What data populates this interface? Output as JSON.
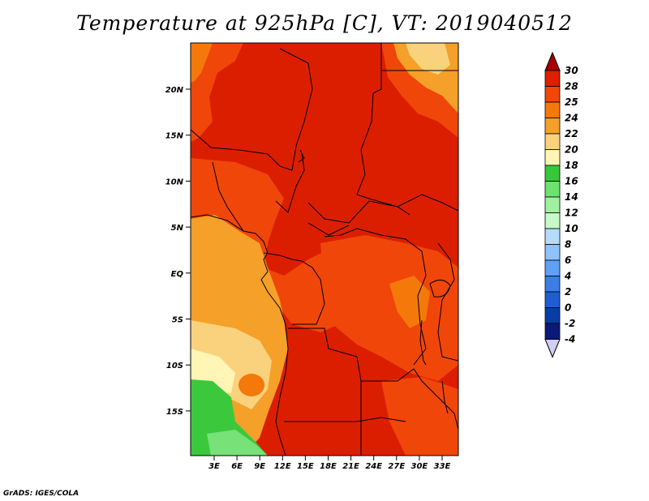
{
  "title": "Temperature at 925hPa [C], VT: 2019040512",
  "credit": "GrADS: IGES/COLA",
  "lat_labels": [
    "20N",
    "15N",
    "10N",
    "5N",
    "EQ",
    "5S",
    "10S",
    "15S"
  ],
  "lon_labels": [
    "3E",
    "6E",
    "9E",
    "12E",
    "15E",
    "18E",
    "21E",
    "24E",
    "27E",
    "30E",
    "33E"
  ],
  "colorbar": {
    "levels": [
      "30",
      "28",
      "25",
      "24",
      "22",
      "20",
      "18",
      "16",
      "14",
      "12",
      "10",
      "8",
      "6",
      "4",
      "2",
      "0",
      "-2",
      "-4"
    ],
    "colors": [
      "#a50000",
      "#e01e00",
      "#f5460a",
      "#f5780a",
      "#f5a028",
      "#fad27d",
      "#fff5b4",
      "#36c836",
      "#6ee16e",
      "#a0f0a0",
      "#c8fac8",
      "#b4dcff",
      "#8cc3ff",
      "#5ea1f5",
      "#3a7ee6",
      "#1e5ed2",
      "#0a3ca8",
      "#0a1a78",
      "#d0cff0"
    ]
  },
  "map_colors": {
    "hot": "#dc1e00",
    "warm": "#f0460a",
    "mid": "#f5780a",
    "light": "#f5a028",
    "pale": "#fad27d",
    "cream": "#fff5b4",
    "green": "#3cc83c",
    "lightgreen": "#78e178"
  }
}
